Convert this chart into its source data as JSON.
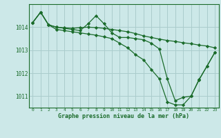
{
  "background_color": "#cce8e8",
  "grid_color": "#aacccc",
  "line_color": "#1a6b2a",
  "marker_color": "#1a6b2a",
  "xlabel": "Graphe pression niveau de la mer (hPa)",
  "xlim": [
    -0.5,
    23.5
  ],
  "ylim": [
    1010.5,
    1015.0
  ],
  "yticks": [
    1011,
    1012,
    1013,
    1014
  ],
  "xticks": [
    0,
    1,
    2,
    3,
    4,
    5,
    6,
    7,
    8,
    9,
    10,
    11,
    12,
    13,
    14,
    15,
    16,
    17,
    18,
    19,
    20,
    21,
    22,
    23
  ],
  "series": [
    [
      1014.2,
      1014.65,
      1014.1,
      1014.0,
      1013.95,
      1013.9,
      1013.85,
      1014.15,
      1014.5,
      1014.15,
      1013.75,
      1013.55,
      1013.55,
      1013.5,
      1013.45,
      1013.3,
      1013.05,
      1011.75,
      1010.8,
      1010.95,
      1011.0,
      1011.7,
      1012.3,
      1012.9
    ],
    [
      1014.2,
      1014.65,
      1014.1,
      1014.0,
      1013.97,
      1013.95,
      1013.98,
      1014.0,
      1013.98,
      1013.95,
      1013.9,
      1013.85,
      1013.8,
      1013.72,
      1013.62,
      1013.55,
      1013.48,
      1013.42,
      1013.38,
      1013.32,
      1013.28,
      1013.22,
      1013.18,
      1013.1
    ],
    [
      1014.2,
      1014.65,
      1014.1,
      1013.9,
      1013.85,
      1013.8,
      1013.75,
      1013.7,
      1013.65,
      1013.58,
      1013.5,
      1013.3,
      1013.1,
      1012.8,
      1012.58,
      1012.15,
      1011.75,
      1010.75,
      1010.62,
      1010.62,
      1011.0,
      1011.72,
      1012.3,
      1012.9
    ]
  ]
}
